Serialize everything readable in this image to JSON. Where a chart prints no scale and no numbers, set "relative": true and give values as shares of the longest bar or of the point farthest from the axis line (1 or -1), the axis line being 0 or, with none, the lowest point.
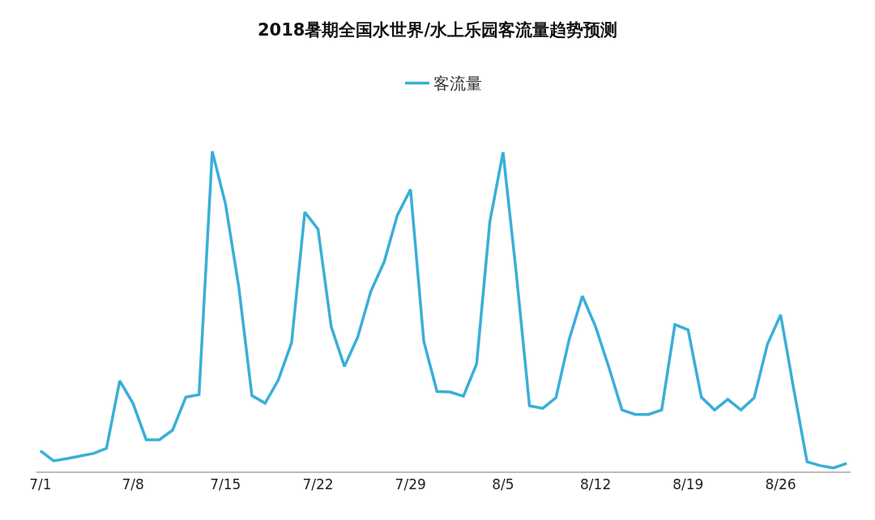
{
  "chart_data": {
    "type": "line",
    "title": "2018暑期全国水世界/水上乐园客流量趋势预测",
    "relative": true,
    "legend": "top",
    "marker": "none",
    "line_style": "solid",
    "categories": [
      "7/1",
      null,
      null,
      null,
      null,
      null,
      null,
      "7/8",
      null,
      null,
      null,
      null,
      null,
      null,
      "7/15",
      null,
      null,
      null,
      null,
      null,
      null,
      "7/22",
      null,
      null,
      null,
      null,
      null,
      null,
      "7/29",
      null,
      null,
      null,
      null,
      null,
      null,
      "8/5",
      null,
      null,
      null,
      null,
      null,
      null,
      "8/12",
      null,
      null,
      null,
      null,
      null,
      null,
      "8/19",
      null,
      null,
      null,
      null,
      null,
      null,
      "8/26",
      null,
      null,
      null,
      null,
      null
    ],
    "series": [
      {
        "name": "客流量",
        "color": "#3aafd8",
        "values": [
          0.064,
          0.033,
          0.04,
          0.048,
          0.056,
          0.072,
          0.283,
          0.213,
          0.099,
          0.099,
          0.129,
          0.232,
          0.24,
          1.0,
          0.836,
          0.578,
          0.237,
          0.213,
          0.286,
          0.402,
          0.81,
          0.757,
          0.452,
          0.328,
          0.419,
          0.563,
          0.654,
          0.8,
          0.881,
          0.407,
          0.25,
          0.248,
          0.235,
          0.336,
          0.78,
          0.997,
          0.619,
          0.205,
          0.197,
          0.23,
          0.412,
          0.548,
          0.452,
          0.326,
          0.192,
          0.178,
          0.178,
          0.192,
          0.459,
          0.442,
          0.232,
          0.192,
          0.225,
          0.192,
          0.23,
          0.397,
          0.489,
          0.255,
          0.03,
          0.018,
          0.011,
          0.025
        ]
      }
    ]
  }
}
